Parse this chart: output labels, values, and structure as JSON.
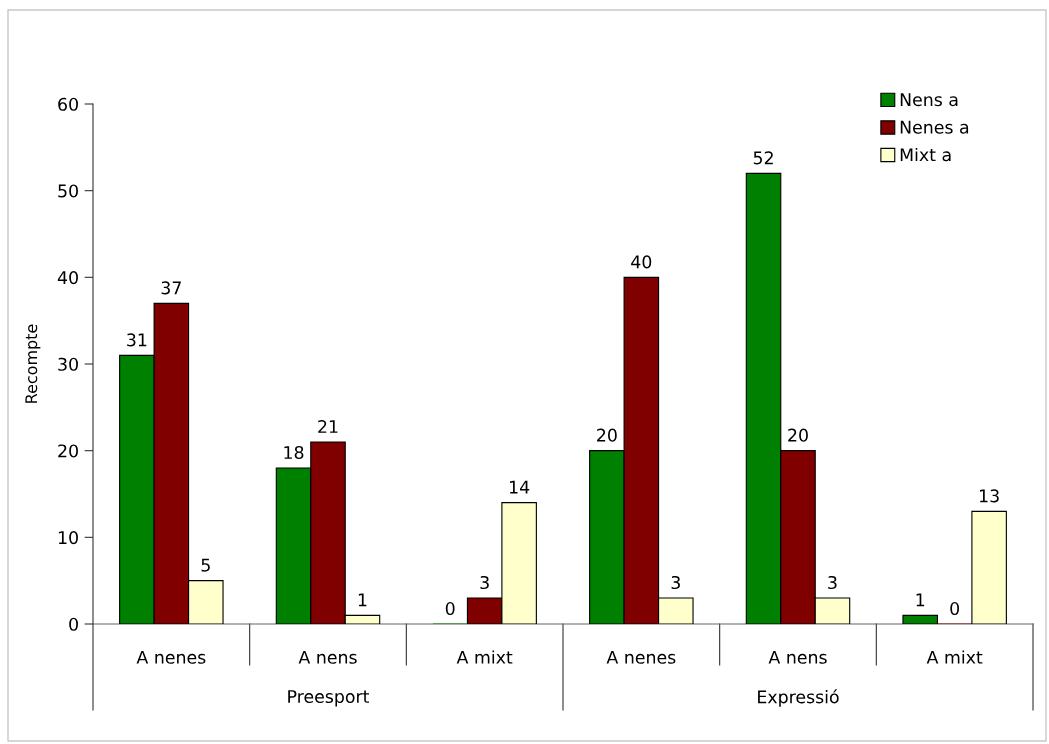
{
  "chart_data": {
    "type": "bar",
    "ylabel": "Recompte",
    "categories": [
      "A nenes",
      "A nens",
      "A mixt",
      "A nenes",
      "A nens",
      "A mixt"
    ],
    "annotations": [
      "Preesport",
      "Expressió"
    ],
    "series": [
      {
        "name": "Nens a",
        "color": "#008000",
        "values": [
          31,
          18,
          0,
          20,
          52,
          1
        ]
      },
      {
        "name": "Nenes a",
        "color": "#800000",
        "values": [
          37,
          21,
          3,
          40,
          20,
          0
        ]
      },
      {
        "name": "Mixt a",
        "color": "#ffffcc",
        "values": [
          5,
          1,
          14,
          3,
          3,
          13
        ]
      }
    ],
    "ylim": [
      0,
      60
    ],
    "yticks": [
      0,
      10,
      20,
      30,
      40,
      50,
      60
    ],
    "data_labels": true,
    "grid": false,
    "legend": "top right"
  }
}
